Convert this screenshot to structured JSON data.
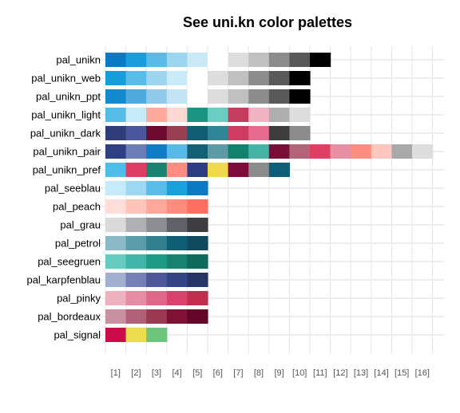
{
  "chart_data": {
    "type": "heatmap",
    "title": "See uni.kn color palettes",
    "xlabel": "",
    "ylabel": "",
    "x_tick_labels": [
      "[1]",
      "[2]",
      "[3]",
      "[4]",
      "[5]",
      "[6]",
      "[7]",
      "[8]",
      "[9]",
      "[10]",
      "[11]",
      "[12]",
      "[13]",
      "[14]",
      "[15]",
      "[16]"
    ],
    "grid": true,
    "palettes": [
      {
        "name": "pal_unikn",
        "colors": [
          "#0A7AC6",
          "#1B9DDD",
          "#57BAE7",
          "#9BD5F0",
          "#C9E9F7",
          "#FFFFFF",
          "#DDDDDD",
          "#C0C0C0",
          "#8C8C8C",
          "#595959",
          "#000000"
        ]
      },
      {
        "name": "pal_unikn_web",
        "colors": [
          "#169EDB",
          "#5ABDE9",
          "#9DD5F1",
          "#C9EAF8",
          "#FFFFFF",
          "#DDDDDD",
          "#C0C0C0",
          "#8C8C8C",
          "#595959",
          "#000000"
        ]
      },
      {
        "name": "pal_unikn_ppt",
        "colors": [
          "#138AD0",
          "#4FAADC",
          "#8FCBE9",
          "#C1E3F3",
          "#FFFFFF",
          "#DDDDDD",
          "#C0C0C0",
          "#8C8C8C",
          "#595959",
          "#000000"
        ]
      },
      {
        "name": "pal_unikn_light",
        "colors": [
          "#57BBE8",
          "#C6EAF7",
          "#FFA89C",
          "#FFD8D3",
          "#1B9583",
          "#6ACDC2",
          "#C63E5F",
          "#F1B2C1",
          "#AEAEAE",
          "#DDDDDD"
        ]
      },
      {
        "name": "pal_unikn_dark",
        "colors": [
          "#2E3C79",
          "#49569C",
          "#6D0A2E",
          "#9A3F53",
          "#0E5D73",
          "#2F8699",
          "#CE3C62",
          "#E76B8E",
          "#3D3D3D",
          "#8C8C8C"
        ]
      },
      {
        "name": "pal_unikn_pair",
        "colors": [
          "#2F3F81",
          "#6B7EB8",
          "#0E7BC7",
          "#56BAE7",
          "#116075",
          "#5C9AA5",
          "#11826D",
          "#44B5A4",
          "#7A0D38",
          "#B26479",
          "#DF3F62",
          "#E98FA4",
          "#FF8C80",
          "#FFC6BF",
          "#A9A9A9",
          "#DDDDDD"
        ]
      },
      {
        "name": "pal_unikn_pref",
        "colors": [
          "#4DBDE9",
          "#DF3C63",
          "#198271",
          "#FF8C80",
          "#2C3D83",
          "#F0D84C",
          "#7C0D3A",
          "#8C8C8C",
          "#0E6079"
        ]
      },
      {
        "name": "pal_seeblau",
        "colors": [
          "#C5EAF8",
          "#9DD7F2",
          "#58BDE9",
          "#1AA1DD",
          "#0C79C5"
        ]
      },
      {
        "name": "pal_peach",
        "colors": [
          "#FFDED9",
          "#FFC3BA",
          "#FFA79B",
          "#FF8B7F",
          "#FF6F60"
        ]
      },
      {
        "name": "pal_grau",
        "colors": [
          "#DADADA",
          "#AEB0B4",
          "#8B8E93",
          "#5F6268",
          "#3E3E40"
        ]
      },
      {
        "name": "pal_petrol",
        "colors": [
          "#8BBAC6",
          "#5B9CAA",
          "#317E8E",
          "#0D5F76",
          "#104A5E"
        ]
      },
      {
        "name": "pal_seegruen",
        "colors": [
          "#66CBC0",
          "#41B5A8",
          "#1D9B86",
          "#16826F",
          "#0B6A5A"
        ]
      },
      {
        "name": "pal_karpfenblau",
        "colors": [
          "#A3AFD1",
          "#7381B6",
          "#4C5898",
          "#324484",
          "#253565"
        ]
      },
      {
        "name": "pal_pinky",
        "colors": [
          "#EEB1C0",
          "#E78CA5",
          "#DF6789",
          "#D9426D",
          "#C0304E"
        ]
      },
      {
        "name": "pal_bordeaux",
        "colors": [
          "#C9909F",
          "#B06177",
          "#993A52",
          "#7E1134",
          "#630628"
        ]
      },
      {
        "name": "pal_signal",
        "colors": [
          "#CC0C48",
          "#EDDC4D",
          "#6CC57B"
        ]
      }
    ]
  }
}
